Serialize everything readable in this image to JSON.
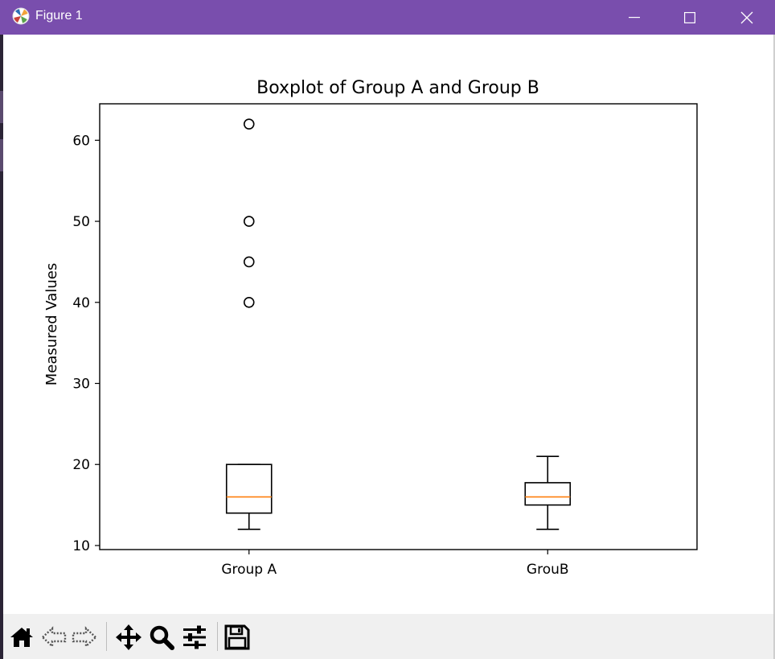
{
  "window": {
    "title": "Figure 1",
    "icons": {
      "app": "matplotlib-logo-icon",
      "minimize": "minimize-icon",
      "maximize": "maximize-icon",
      "close": "close-icon"
    }
  },
  "toolbar": {
    "buttons": [
      "home-icon",
      "back-arrow-icon",
      "forward-arrow-icon",
      "pan-icon",
      "zoom-icon",
      "configure-subplots-icon",
      "save-icon"
    ]
  },
  "colors": {
    "titlebar": "#794ead",
    "median": "#ff7f0e",
    "box": "#000000"
  },
  "chart_data": {
    "type": "box",
    "title": "Boxplot of Group A and Group B",
    "ylabel": "Measured Values",
    "xlabel": "",
    "ylim": [
      9.5,
      64.5
    ],
    "yticks": [
      10,
      20,
      30,
      40,
      50,
      60
    ],
    "categories": [
      "Group A",
      "GrouB"
    ],
    "grid": false,
    "boxes": [
      {
        "label": "Group A",
        "whislo": 12,
        "q1": 14,
        "median": 16,
        "q3": 20,
        "whishi": 20,
        "fliers": [
          40,
          45,
          50,
          62
        ]
      },
      {
        "label": "GrouB",
        "whislo": 12,
        "q1": 15,
        "median": 16,
        "q3": 17.75,
        "whishi": 21,
        "fliers": []
      }
    ]
  }
}
